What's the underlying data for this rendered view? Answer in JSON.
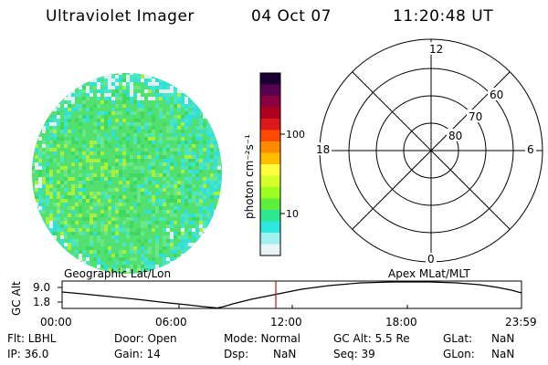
{
  "header": {
    "instrument": "Ultraviolet Imager",
    "date": "04 Oct 07",
    "time": "11:20:48 UT"
  },
  "colorbar": {
    "unit_label": "photon cm⁻²s⁻¹",
    "tick_labels": [
      "100",
      "10"
    ],
    "colors": [
      "#1a0030",
      "#5a0050",
      "#8a0040",
      "#b00020",
      "#dd1818",
      "#ff4a00",
      "#ff8c00",
      "#ffbe00",
      "#ffff40",
      "#d4ff2a",
      "#9cff20",
      "#5cf03a",
      "#2ee890",
      "#2ee8e0",
      "#a0f0f0",
      "#e8f4f8"
    ]
  },
  "polar": {
    "mlt_labels": {
      "top": "12",
      "left": "18",
      "right": "6",
      "bottom": "0"
    },
    "lat_labels": [
      "60",
      "70",
      "80"
    ]
  },
  "timeline": {
    "ylabel": "GC Alt",
    "y_ticks": [
      "9.0",
      "1.8"
    ],
    "left_title": "Geographic Lat/Lon",
    "right_title": "Apex MLat/MLT",
    "x_ticks": [
      "00:00",
      "06:00",
      "12:00",
      "18:00",
      "23:59"
    ]
  },
  "info": {
    "flt": "Flt: LBHL",
    "ip": "IP: 36.0",
    "door": "Door: Open",
    "gain": "Gain: 14",
    "mode": "Mode: Normal",
    "dsp_label": "Dsp:",
    "dsp_value": "NaN",
    "gc_alt": "GC Alt: 5.5 Re",
    "seq": "Seq: 39",
    "glat_label": "GLat:",
    "glat_value": "NaN",
    "glon_label": "GLon:",
    "glon_value": "NaN"
  }
}
